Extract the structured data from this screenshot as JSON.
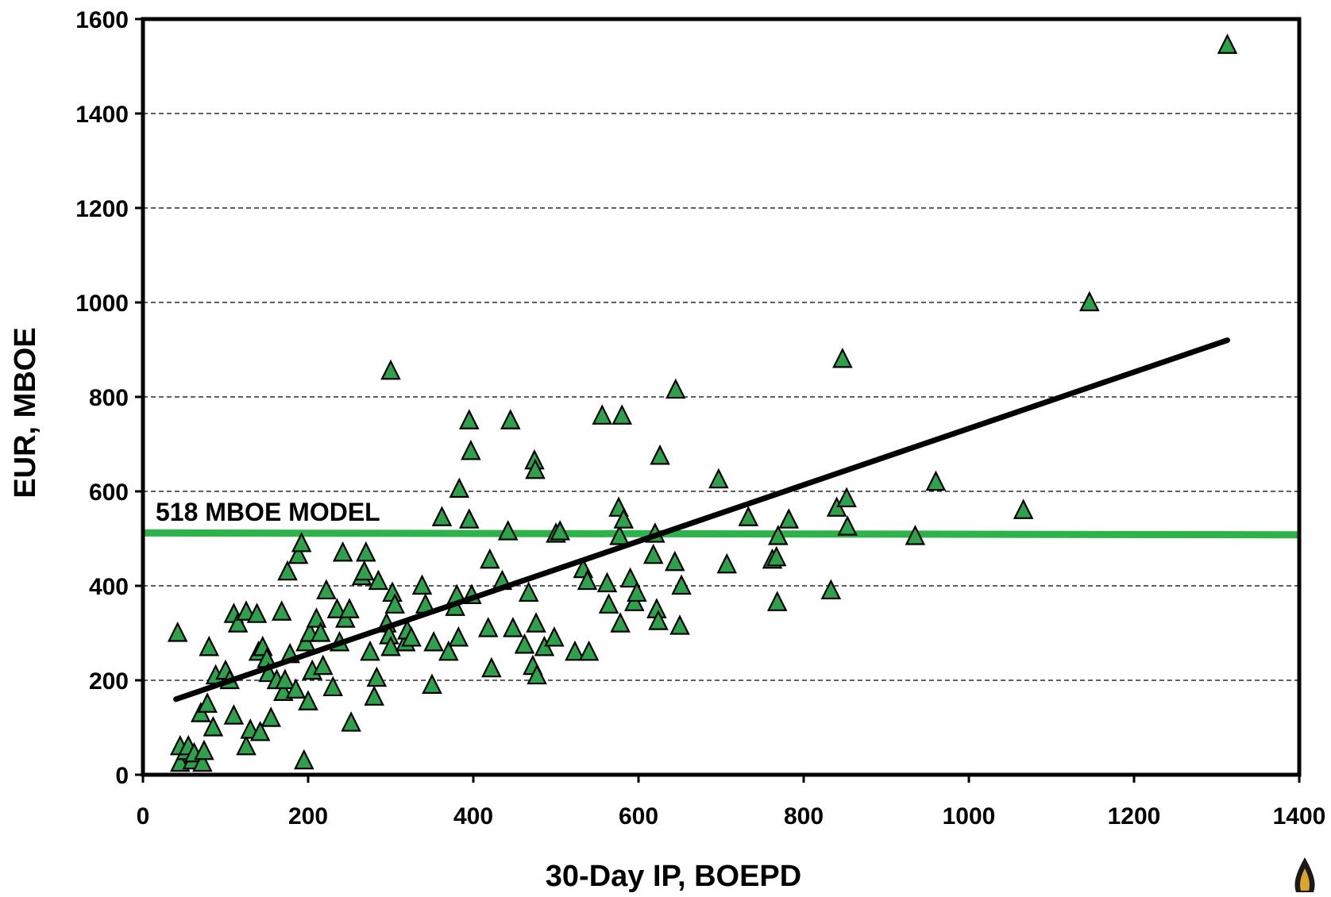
{
  "chart_data": {
    "type": "scatter",
    "title": "",
    "xlabel": "30-Day IP, BOEPD",
    "ylabel": "EUR, MBOE",
    "xlim": [
      0,
      1400
    ],
    "ylim": [
      0,
      1600
    ],
    "x_ticks": [
      0,
      200,
      400,
      600,
      800,
      1000,
      1200,
      1400
    ],
    "y_ticks": [
      0,
      200,
      400,
      600,
      800,
      1000,
      1200,
      1400,
      1600
    ],
    "grid": "horizontal dashed",
    "annotation": "518 MBOE MODEL",
    "model_line": {
      "x": [
        0,
        1400
      ],
      "y": [
        512,
        508
      ],
      "color": "#2db34a"
    },
    "trend_line": {
      "x": [
        40,
        1313
      ],
      "y": [
        160,
        920
      ],
      "color": "#000000"
    },
    "marker": {
      "shape": "triangle",
      "fill": "#2ca24a",
      "stroke": "#000000"
    },
    "points": [
      [
        42,
        300
      ],
      [
        45,
        60
      ],
      [
        45,
        25
      ],
      [
        52,
        50
      ],
      [
        55,
        60
      ],
      [
        60,
        30
      ],
      [
        62,
        45
      ],
      [
        70,
        130
      ],
      [
        72,
        25
      ],
      [
        74,
        50
      ],
      [
        78,
        150
      ],
      [
        80,
        270
      ],
      [
        85,
        100
      ],
      [
        88,
        210
      ],
      [
        100,
        220
      ],
      [
        105,
        200
      ],
      [
        110,
        340
      ],
      [
        110,
        125
      ],
      [
        115,
        320
      ],
      [
        125,
        60
      ],
      [
        125,
        345
      ],
      [
        130,
        95
      ],
      [
        138,
        340
      ],
      [
        140,
        260
      ],
      [
        142,
        90
      ],
      [
        145,
        270
      ],
      [
        150,
        245
      ],
      [
        152,
        215
      ],
      [
        155,
        120
      ],
      [
        162,
        200
      ],
      [
        168,
        345
      ],
      [
        170,
        175
      ],
      [
        172,
        200
      ],
      [
        175,
        430
      ],
      [
        178,
        255
      ],
      [
        185,
        180
      ],
      [
        188,
        465
      ],
      [
        192,
        490
      ],
      [
        195,
        30
      ],
      [
        197,
        280
      ],
      [
        200,
        155
      ],
      [
        202,
        300
      ],
      [
        205,
        220
      ],
      [
        210,
        330
      ],
      [
        215,
        300
      ],
      [
        218,
        230
      ],
      [
        222,
        390
      ],
      [
        230,
        185
      ],
      [
        235,
        350
      ],
      [
        238,
        280
      ],
      [
        242,
        470
      ],
      [
        245,
        330
      ],
      [
        250,
        350
      ],
      [
        252,
        110
      ],
      [
        265,
        420
      ],
      [
        268,
        430
      ],
      [
        270,
        470
      ],
      [
        275,
        260
      ],
      [
        280,
        165
      ],
      [
        283,
        205
      ],
      [
        285,
        410
      ],
      [
        295,
        320
      ],
      [
        298,
        295
      ],
      [
        300,
        270
      ],
      [
        300,
        855
      ],
      [
        302,
        385
      ],
      [
        305,
        360
      ],
      [
        318,
        280
      ],
      [
        320,
        305
      ],
      [
        325,
        290
      ],
      [
        338,
        400
      ],
      [
        342,
        360
      ],
      [
        350,
        190
      ],
      [
        352,
        280
      ],
      [
        362,
        545
      ],
      [
        370,
        260
      ],
      [
        378,
        355
      ],
      [
        380,
        380
      ],
      [
        382,
        290
      ],
      [
        383,
        605
      ],
      [
        395,
        540
      ],
      [
        395,
        750
      ],
      [
        397,
        685
      ],
      [
        398,
        380
      ],
      [
        418,
        310
      ],
      [
        420,
        455
      ],
      [
        422,
        225
      ],
      [
        435,
        410
      ],
      [
        442,
        515
      ],
      [
        445,
        750
      ],
      [
        448,
        310
      ],
      [
        462,
        275
      ],
      [
        467,
        385
      ],
      [
        472,
        230
      ],
      [
        474,
        665
      ],
      [
        475,
        645
      ],
      [
        476,
        320
      ],
      [
        477,
        210
      ],
      [
        486,
        270
      ],
      [
        498,
        290
      ],
      [
        500,
        510
      ],
      [
        505,
        515
      ],
      [
        523,
        260
      ],
      [
        533,
        435
      ],
      [
        538,
        410
      ],
      [
        540,
        260
      ],
      [
        556,
        760
      ],
      [
        562,
        405
      ],
      [
        564,
        360
      ],
      [
        576,
        565
      ],
      [
        577,
        505
      ],
      [
        578,
        320
      ],
      [
        580,
        760
      ],
      [
        582,
        540
      ],
      [
        590,
        415
      ],
      [
        595,
        365
      ],
      [
        598,
        385
      ],
      [
        618,
        465
      ],
      [
        620,
        510
      ],
      [
        622,
        350
      ],
      [
        624,
        325
      ],
      [
        626,
        675
      ],
      [
        644,
        450
      ],
      [
        645,
        815
      ],
      [
        650,
        315
      ],
      [
        652,
        400
      ],
      [
        697,
        625
      ],
      [
        707,
        445
      ],
      [
        733,
        545
      ],
      [
        762,
        455
      ],
      [
        767,
        460
      ],
      [
        768,
        365
      ],
      [
        769,
        505
      ],
      [
        782,
        540
      ],
      [
        833,
        390
      ],
      [
        840,
        565
      ],
      [
        847,
        880
      ],
      [
        852,
        585
      ],
      [
        853,
        525
      ],
      [
        935,
        505
      ],
      [
        960,
        620
      ],
      [
        1066,
        560
      ],
      [
        1146,
        1000
      ],
      [
        1313,
        1545
      ]
    ]
  }
}
